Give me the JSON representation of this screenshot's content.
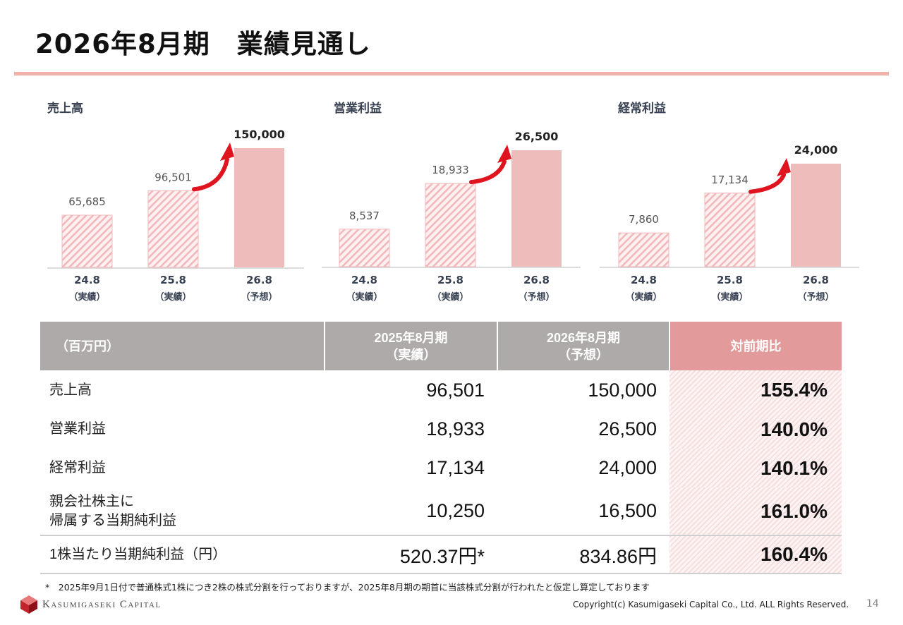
{
  "page": {
    "title": "2026年8月期　業績見通し",
    "footnote": "*　2025年9月1日付で普通株式1株につき2株の株式分割を行っておりますが、2025年8月期の期首に当該株式分割が行われたと仮定し算定しております",
    "logo_text": "Kasumigaseki Capital",
    "copyright": "Copyright(c) Kasumigaseki Capital Co., Ltd. ALL Rights Reserved.",
    "page_number": "14"
  },
  "colors": {
    "title_rule": "#f0b2a9",
    "hatch_stripe": "#f2b8bb",
    "hatch_bg": "#fdf1f1",
    "forecast_bar": "#efbcbc",
    "arrow": "#e0141e",
    "header_gray": "#aeaaa9",
    "header_ratio": "#e29a9a"
  },
  "chart_data": [
    {
      "type": "bar",
      "title": "売上高",
      "categories": [
        "24.8",
        "25.8",
        "26.8"
      ],
      "category_sublabels": [
        "（実績）",
        "（実績）",
        "（予想）"
      ],
      "values": [
        65685,
        96501,
        150000
      ],
      "value_labels": [
        "65,685",
        "96,501",
        "150,000"
      ],
      "bar_styles": [
        "hatched",
        "hatched",
        "solid"
      ],
      "annotation": "up-arrow-icon"
    },
    {
      "type": "bar",
      "title": "営業利益",
      "categories": [
        "24.8",
        "25.8",
        "26.8"
      ],
      "category_sublabels": [
        "（実績）",
        "（実績）",
        "（予想）"
      ],
      "values": [
        8537,
        18933,
        26500
      ],
      "value_labels": [
        "8,537",
        "18,933",
        "26,500"
      ],
      "bar_styles": [
        "hatched",
        "hatched",
        "solid"
      ],
      "annotation": "up-arrow-icon"
    },
    {
      "type": "bar",
      "title": "経常利益",
      "categories": [
        "24.8",
        "25.8",
        "26.8"
      ],
      "category_sublabels": [
        "（実績）",
        "（実績）",
        "（予想）"
      ],
      "values": [
        7860,
        17134,
        24000
      ],
      "value_labels": [
        "7,860",
        "17,134",
        "24,000"
      ],
      "bar_styles": [
        "hatched",
        "hatched",
        "solid"
      ],
      "annotation": "up-arrow-icon"
    }
  ],
  "table": {
    "unit_header": "（百万円）",
    "col1_header_line1": "2025年8月期",
    "col1_header_line2": "（実績）",
    "col2_header_line1": "2026年8月期",
    "col2_header_line2": "（予想）",
    "ratio_header": "対前期比",
    "rows": [
      {
        "label_line1": "売上高",
        "label_line2": "",
        "fy2025": "96,501",
        "fy2026": "150,000",
        "ratio": "155.4%"
      },
      {
        "label_line1": "営業利益",
        "label_line2": "",
        "fy2025": "18,933",
        "fy2026": "26,500",
        "ratio": "140.0%"
      },
      {
        "label_line1": "経常利益",
        "label_line2": "",
        "fy2025": "17,134",
        "fy2026": "24,000",
        "ratio": "140.1%"
      },
      {
        "label_line1": "親会社株主に",
        "label_line2": "帰属する当期純利益",
        "fy2025": "10,250",
        "fy2026": "16,500",
        "ratio": "161.0%"
      },
      {
        "label_line1": "1株当たり当期純利益（円）",
        "label_line2": "",
        "fy2025": "520.37円*",
        "fy2026": "834.86円",
        "ratio": "160.4%"
      }
    ]
  }
}
